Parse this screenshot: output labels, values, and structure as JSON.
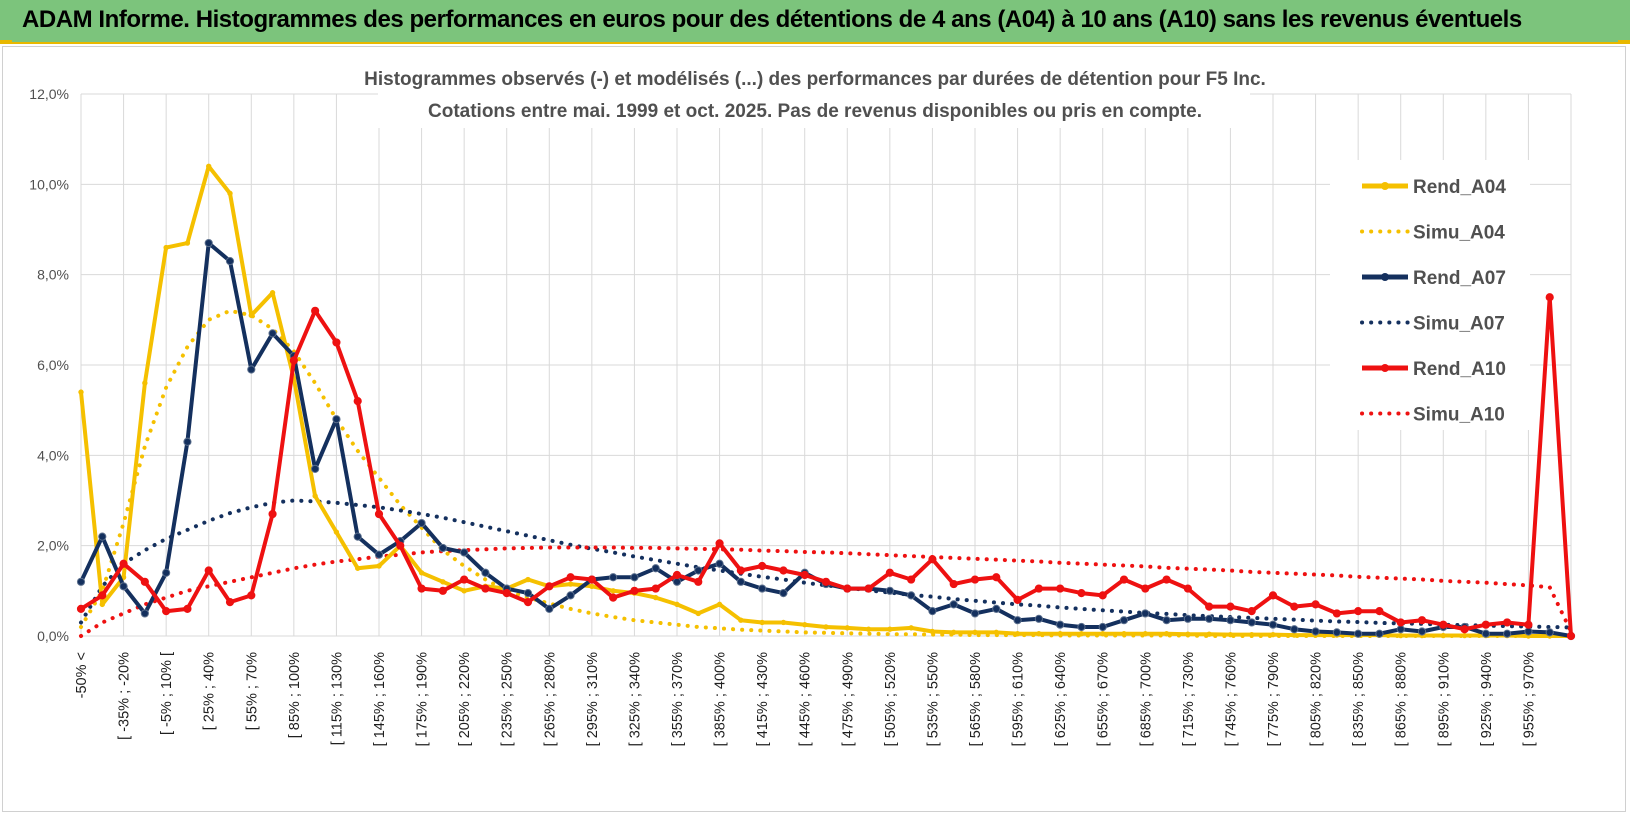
{
  "header": {
    "title": "ADAM Informe. Histogrammes des performances en euros pour des détentions de 4 ans (A04) à 10 ans (A10) sans les revenus éventuels"
  },
  "colors": {
    "banner": "#7cc47c",
    "accent": "#e8b800",
    "a04": "#f5c000",
    "a07": "#14305e",
    "a10": "#ee1111",
    "grid": "#d9d9d9"
  },
  "chart_data": {
    "type": "line",
    "title_line1": "Histogrammes observés (-) et modélisés (...) des performances par durées de détention pour F5 Inc.",
    "title_line2": "Cotations entre mai. 1999 et oct. 2025. Pas de revenus disponibles ou pris en compte.",
    "ylim": [
      0,
      12
    ],
    "yticks": [
      "0,0%",
      "2,0%",
      "4,0%",
      "6,0%",
      "8,0%",
      "10,0%",
      "12,0%"
    ],
    "x_labels": [
      "-50% <",
      "[ -35% ; -20%",
      "[ -5% ; 10% [",
      "[ 25% ; 40%",
      "[ 55% ; 70%",
      "[ 85% ; 100%",
      "[ 115% ; 130%",
      "[ 145% ; 160%",
      "[ 175% ; 190%",
      "[ 205% ; 220%",
      "[ 235% ; 250%",
      "[ 265% ; 280%",
      "[ 295% ; 310%",
      "[ 325% ; 340%",
      "[ 355% ; 370%",
      "[ 385% ; 400%",
      "[ 415% ; 430%",
      "[ 445% ; 460%",
      "[ 475% ; 490%",
      "[ 505% ; 520%",
      "[ 535% ; 550%",
      "[ 565% ; 580%",
      "[ 595% ; 610%",
      "[ 625% ; 640%",
      "[ 655% ; 670%",
      "[ 685% ; 700%",
      "[ 715% ; 730%",
      "[ 745% ; 760%",
      "[ 775% ; 790%",
      "[ 805% ; 820%",
      "[ 835% ; 850%",
      "[ 865% ; 880%",
      "[ 895% ; 910%",
      "[ 925% ; 940%",
      "[ 955% ; 970%"
    ],
    "series": [
      {
        "name": "Rend_A04",
        "style": "solid",
        "markers": false,
        "values": [
          5.4,
          0.7,
          1.3,
          5.6,
          8.6,
          8.7,
          10.4,
          9.8,
          7.1,
          7.6,
          5.7,
          3.1,
          2.3,
          1.5,
          1.55,
          2.0,
          1.4,
          1.2,
          1.0,
          1.1,
          1.05,
          1.25,
          1.1,
          1.15,
          1.1,
          1.0,
          0.95,
          0.85,
          0.7,
          0.5,
          0.7,
          0.35,
          0.3,
          0.3,
          0.25,
          0.2,
          0.18,
          0.15,
          0.15,
          0.18,
          0.1,
          0.08,
          0.08,
          0.08,
          0.05,
          0.05,
          0.05,
          0.05,
          0.05,
          0.05,
          0.05,
          0.05,
          0.04,
          0.04,
          0.03,
          0.03,
          0.03,
          0.02,
          0.02,
          0.02,
          0.02,
          0.02,
          0.01,
          0.01,
          0.01,
          0.01,
          0.01,
          0.01,
          0.0,
          0.0,
          0.0
        ]
      },
      {
        "name": "Simu_A04",
        "style": "dotted",
        "markers": false,
        "values": [
          0.2,
          1.0,
          2.5,
          4.2,
          5.5,
          6.4,
          7.0,
          7.2,
          7.1,
          6.8,
          6.3,
          5.6,
          4.8,
          4.1,
          3.5,
          2.9,
          2.4,
          1.9,
          1.55,
          1.25,
          1.0,
          0.85,
          0.72,
          0.6,
          0.5,
          0.42,
          0.35,
          0.3,
          0.25,
          0.2,
          0.17,
          0.14,
          0.12,
          0.1,
          0.08,
          0.07,
          0.06,
          0.05,
          0.04,
          0.04,
          0.03,
          0.03,
          0.02,
          0.02,
          0.02,
          0.02,
          0.01,
          0.01,
          0.01,
          0.01,
          0.01,
          0.01,
          0.01,
          0.0,
          0.0,
          0.0,
          0.0,
          0.0,
          0.0,
          0.0,
          0.0,
          0.0,
          0.0,
          0.0,
          0.0,
          0.0,
          0.0,
          0.0,
          0.0,
          0.0,
          0.0
        ]
      },
      {
        "name": "Rend_A07",
        "style": "solid",
        "markers": true,
        "values": [
          1.2,
          2.2,
          1.1,
          0.5,
          1.4,
          4.3,
          8.7,
          8.3,
          5.9,
          6.7,
          6.2,
          3.7,
          4.8,
          2.2,
          1.8,
          2.1,
          2.5,
          1.95,
          1.85,
          1.4,
          1.05,
          0.95,
          0.6,
          0.9,
          1.25,
          1.3,
          1.3,
          1.5,
          1.2,
          1.45,
          1.6,
          1.2,
          1.05,
          0.95,
          1.4,
          1.15,
          1.05,
          1.05,
          1.0,
          0.9,
          0.55,
          0.7,
          0.5,
          0.6,
          0.35,
          0.38,
          0.25,
          0.2,
          0.2,
          0.35,
          0.5,
          0.35,
          0.38,
          0.38,
          0.35,
          0.3,
          0.25,
          0.15,
          0.1,
          0.08,
          0.05,
          0.05,
          0.15,
          0.1,
          0.2,
          0.2,
          0.05,
          0.05,
          0.1,
          0.08,
          0.0
        ]
      },
      {
        "name": "Simu_A07",
        "style": "dotted",
        "markers": false,
        "values": [
          0.3,
          1.1,
          1.6,
          1.9,
          2.15,
          2.35,
          2.55,
          2.72,
          2.85,
          2.95,
          3.0,
          2.98,
          2.95,
          2.9,
          2.85,
          2.78,
          2.7,
          2.62,
          2.52,
          2.42,
          2.32,
          2.22,
          2.12,
          2.02,
          1.93,
          1.85,
          1.76,
          1.68,
          1.6,
          1.52,
          1.45,
          1.38,
          1.31,
          1.25,
          1.18,
          1.12,
          1.07,
          1.01,
          0.96,
          0.91,
          0.87,
          0.82,
          0.78,
          0.74,
          0.7,
          0.67,
          0.63,
          0.6,
          0.57,
          0.54,
          0.51,
          0.49,
          0.46,
          0.44,
          0.42,
          0.4,
          0.38,
          0.36,
          0.34,
          0.32,
          0.31,
          0.29,
          0.28,
          0.27,
          0.25,
          0.24,
          0.23,
          0.22,
          0.21,
          0.2,
          0.19
        ]
      },
      {
        "name": "Rend_A10",
        "style": "solid",
        "markers": true,
        "values": [
          0.6,
          0.9,
          1.6,
          1.2,
          0.55,
          0.6,
          1.45,
          0.75,
          0.9,
          2.7,
          6.1,
          7.2,
          6.5,
          5.2,
          2.7,
          2.0,
          1.05,
          1.0,
          1.25,
          1.05,
          0.95,
          0.75,
          1.1,
          1.3,
          1.25,
          0.85,
          1.0,
          1.05,
          1.35,
          1.2,
          2.05,
          1.45,
          1.55,
          1.45,
          1.35,
          1.2,
          1.05,
          1.05,
          1.4,
          1.25,
          1.7,
          1.15,
          1.25,
          1.3,
          0.8,
          1.05,
          1.05,
          0.95,
          0.9,
          1.25,
          1.05,
          1.25,
          1.05,
          0.65,
          0.65,
          0.55,
          0.9,
          0.65,
          0.7,
          0.5,
          0.55,
          0.55,
          0.3,
          0.35,
          0.25,
          0.15,
          0.25,
          0.3,
          0.25,
          7.5,
          0.0
        ]
      },
      {
        "name": "Simu_A10",
        "style": "dotted",
        "markers": false,
        "values": [
          0.0,
          0.3,
          0.5,
          0.7,
          0.85,
          1.0,
          1.1,
          1.2,
          1.3,
          1.4,
          1.5,
          1.58,
          1.65,
          1.7,
          1.76,
          1.8,
          1.85,
          1.88,
          1.9,
          1.92,
          1.94,
          1.95,
          1.96,
          1.96,
          1.96,
          1.96,
          1.95,
          1.95,
          1.94,
          1.93,
          1.92,
          1.91,
          1.89,
          1.88,
          1.86,
          1.85,
          1.83,
          1.81,
          1.79,
          1.77,
          1.75,
          1.73,
          1.71,
          1.69,
          1.67,
          1.65,
          1.62,
          1.6,
          1.58,
          1.56,
          1.54,
          1.51,
          1.49,
          1.47,
          1.45,
          1.42,
          1.4,
          1.38,
          1.36,
          1.34,
          1.31,
          1.29,
          1.27,
          1.25,
          1.22,
          1.2,
          1.18,
          1.15,
          1.12,
          1.08,
          0.1
        ]
      }
    ],
    "legend_position": "right",
    "grid": true
  }
}
